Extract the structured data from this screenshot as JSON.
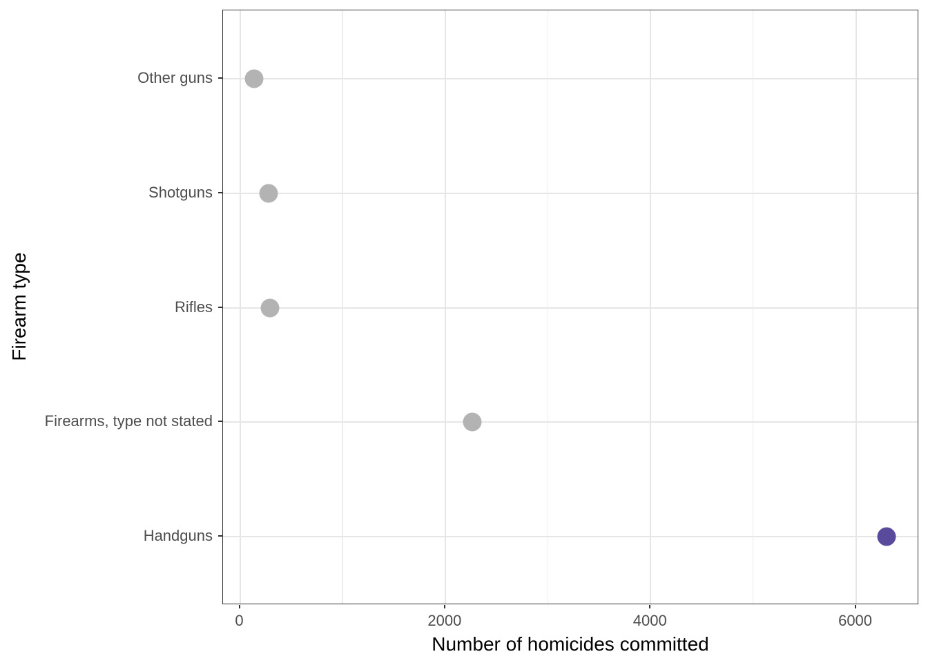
{
  "chart_data": {
    "type": "scatter",
    "variant": "horizontal-dot-plot",
    "title": "",
    "xlabel": "Number of homicides committed",
    "ylabel": "Firearm type",
    "categories": [
      "Other guns",
      "Shotguns",
      "Rifles",
      "Firearms, type not stated",
      "Handguns"
    ],
    "values": [
      140,
      280,
      290,
      2260,
      6300
    ],
    "point_colors": [
      "#b3b3b3",
      "#b3b3b3",
      "#b3b3b3",
      "#b3b3b3",
      "#5a4a9c"
    ],
    "highlight_category": "Handguns",
    "x_ticks": [
      0,
      2000,
      4000,
      6000
    ],
    "x_tick_labels": [
      "0",
      "2000",
      "4000",
      "6000"
    ],
    "x_minor_ticks": [
      1000,
      3000,
      5000
    ],
    "xlim": [
      -165,
      6615
    ],
    "grid": true,
    "legend": false,
    "colors": {
      "default_point": "#b3b3b3",
      "highlight_point": "#5a4a9c",
      "grid_major": "#e6e6e6",
      "grid_minor": "#ededed",
      "panel_border": "#333333",
      "tick_mark": "#333333",
      "tick_label": "#4d4d4d",
      "axis_title": "#000000",
      "background": "#ffffff"
    }
  }
}
